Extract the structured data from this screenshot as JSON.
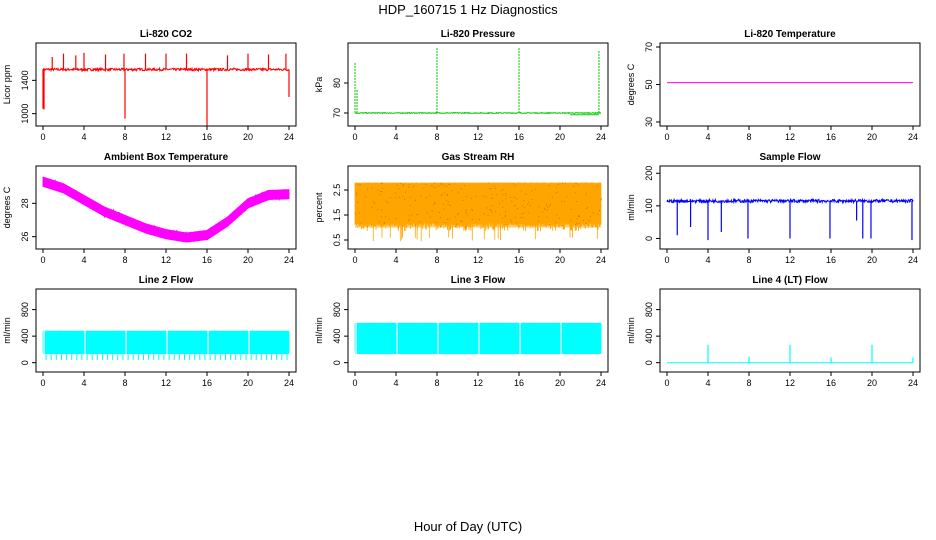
{
  "figure": {
    "title": "HDP_160715  1 Hz Diagnostics",
    "xlabel": "Hour of Day (UTC)"
  },
  "chart_data": [
    {
      "type": "line",
      "title": "Li-820 CO2",
      "ylabel": "Licor ppm",
      "color": "#ff0000",
      "xlim": [
        0,
        24
      ],
      "ylim": [
        900,
        1800
      ],
      "xticks": [
        0,
        4,
        8,
        12,
        16,
        20,
        24
      ],
      "yticks": [
        1000,
        1400
      ],
      "baseline": 1530,
      "noise": 15,
      "spikes": [
        {
          "x": 0.0,
          "y": 1060
        },
        {
          "x": 0.1,
          "y": 1050
        },
        {
          "x": 0.9,
          "y": 1680
        },
        {
          "x": 2.0,
          "y": 1720
        },
        {
          "x": 3.2,
          "y": 1700
        },
        {
          "x": 4.0,
          "y": 1730
        },
        {
          "x": 6.1,
          "y": 1710
        },
        {
          "x": 7.9,
          "y": 1720
        },
        {
          "x": 8.0,
          "y": 940
        },
        {
          "x": 10.0,
          "y": 1720
        },
        {
          "x": 12.0,
          "y": 1720
        },
        {
          "x": 14.0,
          "y": 1720
        },
        {
          "x": 16.0,
          "y": 860
        },
        {
          "x": 18.0,
          "y": 1700
        },
        {
          "x": 20.0,
          "y": 1720
        },
        {
          "x": 22.0,
          "y": 1710
        },
        {
          "x": 23.7,
          "y": 1720
        },
        {
          "x": 24.0,
          "y": 1200
        }
      ]
    },
    {
      "type": "line",
      "title": "Li-820 Pressure",
      "ylabel": "kPa",
      "color": "#00cc00",
      "xlim": [
        0,
        24
      ],
      "ylim": [
        67,
        92
      ],
      "xticks": [
        0,
        4,
        8,
        12,
        16,
        20,
        24
      ],
      "yticks": [
        70,
        80
      ],
      "baseline": 70.0,
      "noise": 0.15,
      "spikes": [
        {
          "x": 0.0,
          "y": 87
        },
        {
          "x": 0.2,
          "y": 78
        },
        {
          "x": 8.0,
          "y": 92
        },
        {
          "x": 16.0,
          "y": 92
        },
        {
          "x": 23.8,
          "y": 91
        }
      ]
    },
    {
      "type": "line",
      "title": "Li-820 Temperature",
      "ylabel": "degrees C",
      "color": "#ff00ff",
      "xlim": [
        0,
        24
      ],
      "ylim": [
        30,
        70
      ],
      "xticks": [
        0,
        4,
        8,
        12,
        16,
        20,
        24
      ],
      "yticks": [
        30,
        50,
        70
      ],
      "baseline": 51.0,
      "noise": 0,
      "spikes": []
    },
    {
      "type": "line",
      "title": "Ambient Box Temperature",
      "ylabel": "degrees C",
      "color": "#ff00ff",
      "xlim": [
        0,
        24
      ],
      "ylim": [
        25.5,
        30.0
      ],
      "xticks": [
        0,
        4,
        8,
        12,
        16,
        20,
        24
      ],
      "yticks": [
        26,
        28
      ],
      "x": [
        0,
        2,
        4,
        6,
        8,
        10,
        12,
        14,
        16,
        18,
        20,
        22,
        24
      ],
      "values": [
        29.3,
        28.9,
        28.2,
        27.5,
        27.0,
        26.5,
        26.15,
        25.95,
        26.1,
        26.9,
        28.0,
        28.5,
        28.55
      ],
      "noise": 0.3,
      "spikes": []
    },
    {
      "type": "line",
      "title": "Gas Stream RH",
      "ylabel": "percent",
      "color": "#ffa500",
      "xlim": [
        0,
        24
      ],
      "ylim": [
        0.3,
        3.3
      ],
      "xticks": [
        0,
        4,
        8,
        12,
        16,
        20,
        24
      ],
      "yticks": [
        0.5,
        1.5,
        2.5
      ],
      "band": [
        1.0,
        2.8
      ],
      "spikes": []
    },
    {
      "type": "line",
      "title": "Sample Flow",
      "ylabel": "ml/min",
      "color": "#0000ff",
      "xlim": [
        0,
        24
      ],
      "ylim": [
        -20,
        210
      ],
      "xticks": [
        0,
        4,
        8,
        12,
        16,
        20,
        24
      ],
      "yticks": [
        0,
        100,
        200
      ],
      "baseline": 115,
      "noise": 5,
      "spikes": [
        {
          "x": 1.0,
          "y": 10
        },
        {
          "x": 2.3,
          "y": 35
        },
        {
          "x": 4.0,
          "y": -5
        },
        {
          "x": 5.3,
          "y": 20
        },
        {
          "x": 7.9,
          "y": 0
        },
        {
          "x": 12.0,
          "y": 0
        },
        {
          "x": 15.9,
          "y": 0
        },
        {
          "x": 18.5,
          "y": 55
        },
        {
          "x": 19.1,
          "y": 0
        },
        {
          "x": 19.9,
          "y": 0
        },
        {
          "x": 23.9,
          "y": -5
        }
      ]
    },
    {
      "type": "line",
      "title": "Line 2 Flow",
      "ylabel": "ml/min",
      "color": "#00ffff",
      "xlim": [
        0,
        24
      ],
      "ylim": [
        -80,
        1050
      ],
      "xticks": [
        0,
        4,
        8,
        12,
        16,
        20,
        24
      ],
      "yticks": [
        0,
        400,
        800
      ],
      "band": [
        130,
        480
      ],
      "spikes": []
    },
    {
      "type": "line",
      "title": "Line 3 Flow",
      "ylabel": "ml/min",
      "color": "#00ffff",
      "xlim": [
        0,
        24
      ],
      "ylim": [
        -80,
        1050
      ],
      "xticks": [
        0,
        4,
        8,
        12,
        16,
        20,
        24
      ],
      "yticks": [
        0,
        400,
        800
      ],
      "band": [
        130,
        600
      ],
      "spikes": []
    },
    {
      "type": "line",
      "title": "Line 4 (LT) Flow",
      "ylabel": "ml/min",
      "color": "#00ffff",
      "xlim": [
        0,
        24
      ],
      "ylim": [
        -80,
        1050
      ],
      "xticks": [
        0,
        4,
        8,
        12,
        16,
        20,
        24
      ],
      "yticks": [
        0,
        400,
        800
      ],
      "baseline": 0,
      "noise": 0,
      "spikes": [
        {
          "x": 4.0,
          "y": 270
        },
        {
          "x": 8.0,
          "y": 90
        },
        {
          "x": 12.0,
          "y": 270
        },
        {
          "x": 16.0,
          "y": 80
        },
        {
          "x": 20.0,
          "y": 270
        },
        {
          "x": 24.0,
          "y": 80
        }
      ]
    }
  ]
}
